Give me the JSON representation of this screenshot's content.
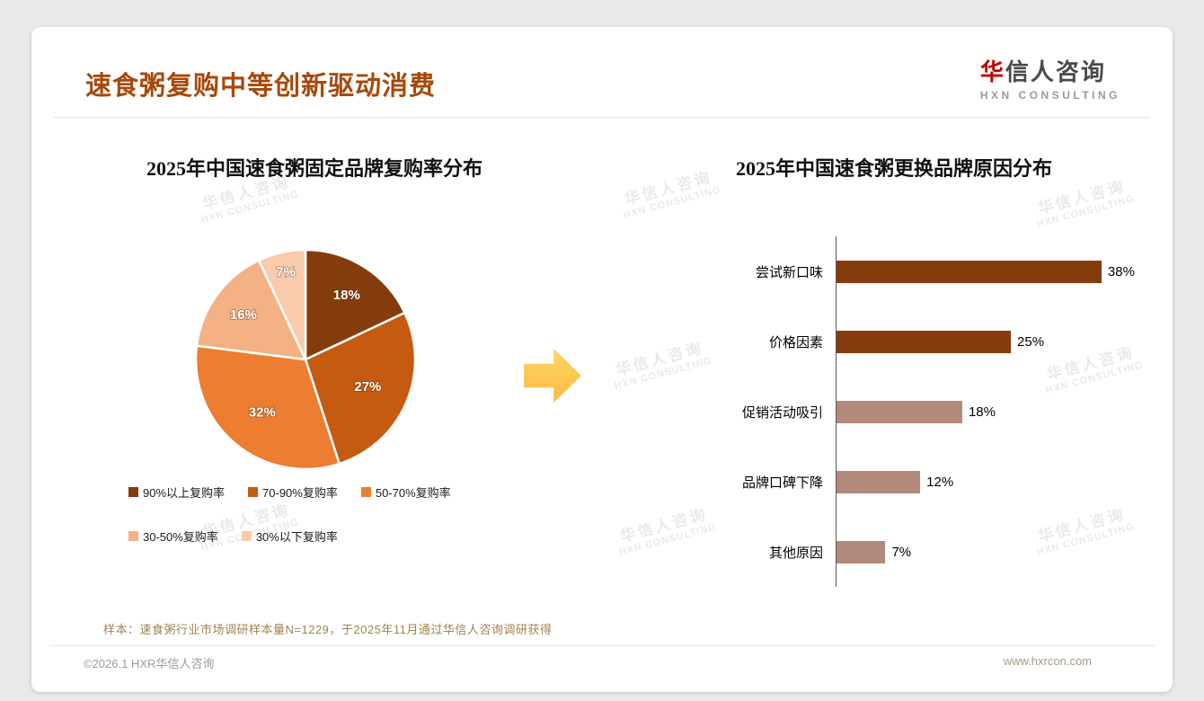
{
  "page": {
    "title": "速食粥复购中等创新驱动消费",
    "logo": {
      "cn_first": "华",
      "cn_rest": "信人咨询",
      "en": "HXN CONSULTING"
    },
    "watermark": {
      "line1": "华信人咨询",
      "line2": "HXN CONSULTING"
    },
    "footnote": "样本：速食粥行业市场调研样本量N=1229，于2025年11月通过华信人咨询调研获得",
    "copyright": "©2026.1 HXR华信人咨询",
    "website": "www.hxrcon.com"
  },
  "colors": {
    "title_accent": "#a6490b",
    "logo_red": "#c00000",
    "arrow_yellow": "#fdbb3f"
  },
  "chart_data": [
    {
      "type": "pie",
      "title": "2025年中国速食粥固定品牌复购率分布",
      "labels": [
        "90%以上复购率",
        "70-90%复购率",
        "50-70%复购率",
        "30-50%复购率",
        "30%以下复购率"
      ],
      "values": [
        18,
        27,
        32,
        16,
        7
      ],
      "value_labels": [
        "18%",
        "27%",
        "32%",
        "16%",
        "7%"
      ],
      "colors": [
        "#843c0c",
        "#c55a11",
        "#ed7d31",
        "#f4b183",
        "#f8cbad"
      ],
      "legend_position": "bottom",
      "start_angle_deg": 0,
      "direction": "clockwise"
    },
    {
      "type": "bar",
      "orientation": "horizontal",
      "title": "2025年中国速食粥更换品牌原因分布",
      "categories": [
        "尝试新口味",
        "价格因素",
        "促销活动吸引",
        "品牌口碑下降",
        "其他原因"
      ],
      "values": [
        38,
        25,
        18,
        12,
        7
      ],
      "value_labels": [
        "38%",
        "25%",
        "18%",
        "12%",
        "7%"
      ],
      "colors": [
        "#843c0c",
        "#843c0c",
        "#b2897b",
        "#b2897b",
        "#b2897b"
      ],
      "xlim": [
        0,
        40
      ],
      "grid": false,
      "axis_line": true
    }
  ]
}
